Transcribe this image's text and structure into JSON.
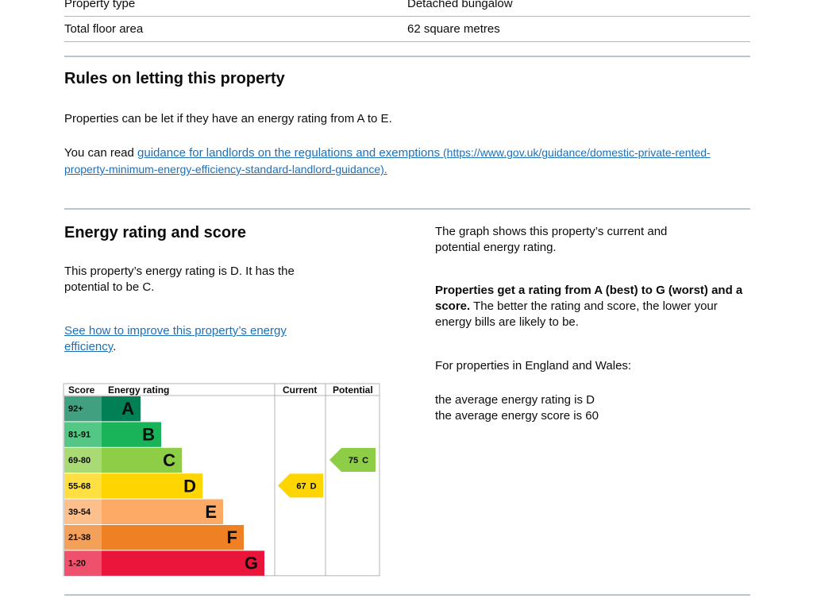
{
  "property_table": {
    "rows": [
      [
        "Property type",
        "Detached bungalow"
      ],
      [
        "Total floor area",
        "62 square metres"
      ]
    ]
  },
  "letting": {
    "heading": "Rules on letting this property",
    "paragraph": "Properties can be let if they have an energy rating from A to E.",
    "guidance_prefix": "You can read ",
    "guidance_link": "guidance for landlords on the regulations and exemptions",
    "guidance_url": " (https://www.gov.uk/guidance/domestic-private-rented-property-minimum-energy-efficiency-standard-landlord-guidance)."
  },
  "energy": {
    "heading": "Energy rating and score",
    "rating_text": "This property’s energy rating is D. It has the potential to be C.",
    "improve_link": "See how to improve this property’s energy efficiency",
    "improve_suffix": ".",
    "graph_text": "The graph shows this property’s current and potential energy rating.",
    "scale_bold": "Properties get a rating from A (best) to G (worst) and a score.",
    "scale_text": " The better the rating and score, the lower your energy bills are likely to be.",
    "region_text": "For properties in England and Wales:",
    "average_rating": "the average energy rating is D",
    "average_score": "the average energy score is 60"
  },
  "epc": {
    "headers": [
      "Score",
      "Energy rating",
      "Current",
      "Potential"
    ],
    "bands": [
      {
        "score": "92+",
        "letter": "A",
        "color": "#008054"
      },
      {
        "score": "81-91",
        "letter": "B",
        "color": "#19b459"
      },
      {
        "score": "69-80",
        "letter": "C",
        "color": "#8dce46"
      },
      {
        "score": "55-68",
        "letter": "D",
        "color": "#ffd500"
      },
      {
        "score": "39-54",
        "letter": "E",
        "color": "#fcaa65"
      },
      {
        "score": "21-38",
        "letter": "F",
        "color": "#ef8023"
      },
      {
        "score": "1-20",
        "letter": "G",
        "color": "#e9153b"
      }
    ],
    "current": {
      "score": 67,
      "rating": "D"
    },
    "potential": {
      "score": 75,
      "rating": "C"
    }
  }
}
